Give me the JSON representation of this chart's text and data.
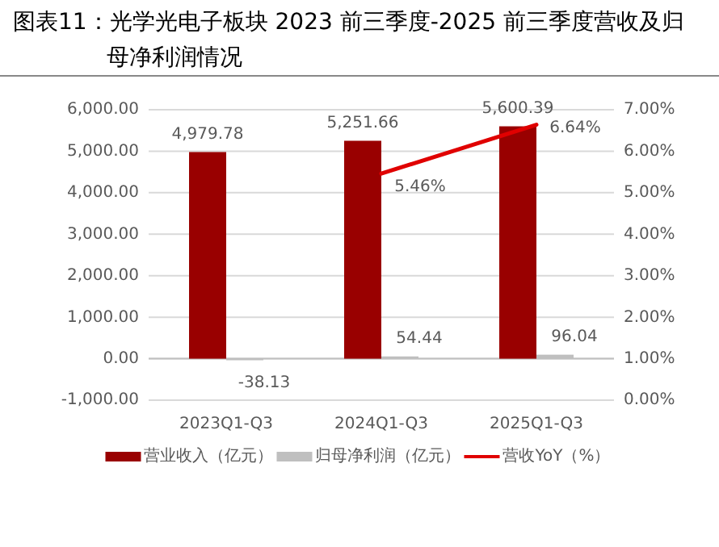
{
  "chart_data": {
    "type": "bar",
    "title": "图表11：光学光电子板块 2023 前三季度-2025 前三季度营收及归母净利润情况",
    "categories": [
      "2023Q1-Q3",
      "2024Q1-Q3",
      "2025Q1-Q3"
    ],
    "series": [
      {
        "name": "营业收入（亿元）",
        "color": "#990000",
        "values": [
          4979.78,
          5251.66,
          5600.39
        ],
        "value_labels": [
          "4,979.78",
          "5,251.66",
          "5,600.39"
        ]
      },
      {
        "name": "归母净利润（亿元）",
        "color": "#bfbfbf",
        "values": [
          -38.13,
          54.44,
          96.04
        ],
        "value_labels": [
          "-38.13",
          "54.44",
          "96.04"
        ]
      },
      {
        "name": "营收YoY（%）",
        "type": "line",
        "axis": "y2",
        "color": "#e00000",
        "values": [
          null,
          5.46,
          6.64
        ],
        "value_labels": [
          null,
          "5.46%",
          "6.64%"
        ]
      }
    ],
    "ylim": [
      -1000,
      6000
    ],
    "yticks": [
      {
        "value": -1000,
        "label": "-1,000.00"
      },
      {
        "value": 0,
        "label": "0.00"
      },
      {
        "value": 1000,
        "label": "1,000.00"
      },
      {
        "value": 2000,
        "label": "2,000.00"
      },
      {
        "value": 3000,
        "label": "3,000.00"
      },
      {
        "value": 4000,
        "label": "4,000.00"
      },
      {
        "value": 5000,
        "label": "5,000.00"
      },
      {
        "value": 6000,
        "label": "6,000.00"
      }
    ],
    "y2lim": [
      0,
      7
    ],
    "y2ticks": [
      {
        "value": 0,
        "label": "0.00%"
      },
      {
        "value": 1,
        "label": "1.00%"
      },
      {
        "value": 2,
        "label": "2.00%"
      },
      {
        "value": 3,
        "label": "3.00%"
      },
      {
        "value": 4,
        "label": "4.00%"
      },
      {
        "value": 5,
        "label": "5.00%"
      },
      {
        "value": 6,
        "label": "6.00%"
      },
      {
        "value": 7,
        "label": "7.00%"
      }
    ],
    "grid": "y",
    "legend": "bottom"
  }
}
